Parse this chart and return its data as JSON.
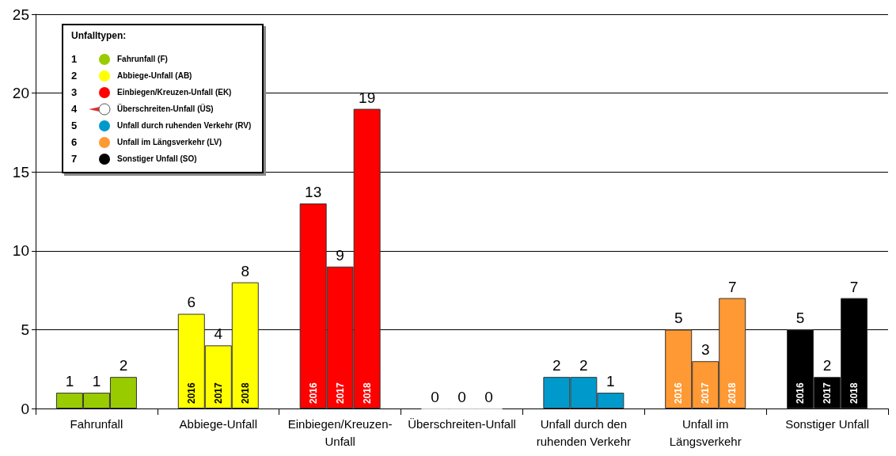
{
  "chart_data": {
    "type": "bar",
    "categories": [
      "Fahrunfall",
      "Abbiege-Unfall",
      "Einbiegen/Kreuzen-\nUnfall",
      "Überschreiten-Unfall",
      "Unfall durch den\nruhenden Verkehr",
      "Unfall im\nLängsverkehr",
      "Sonstiger Unfall"
    ],
    "series": [
      {
        "name": "2016",
        "colors": [
          "#99cc00",
          "#ffff00",
          "#ff0000",
          "#ffffff",
          "#0099cc",
          "#ff9933",
          "#000000"
        ],
        "values": [
          1,
          6,
          13,
          0,
          2,
          5,
          5
        ]
      },
      {
        "name": "2017",
        "colors": [
          "#99cc00",
          "#ffff00",
          "#ff0000",
          "#ffffff",
          "#0099cc",
          "#ff9933",
          "#000000"
        ],
        "values": [
          1,
          4,
          9,
          0,
          2,
          3,
          2
        ]
      },
      {
        "name": "2018",
        "colors": [
          "#99cc00",
          "#ffff00",
          "#ff0000",
          "#ffffff",
          "#0099cc",
          "#ff9933",
          "#000000"
        ],
        "values": [
          2,
          8,
          19,
          0,
          1,
          7,
          7
        ]
      }
    ],
    "ylim": [
      0,
      25
    ],
    "yticks": [
      0,
      5,
      10,
      15,
      20,
      25
    ],
    "grid": "y",
    "data_labels": true,
    "legend_title": "Unfalltypen:",
    "annotations": [
      "1",
      "Fahrunfall (F)",
      "2",
      "Abbiege-Unfall (AB)",
      "3",
      "Einbiegen/Kreuzen-Unfall (EK)",
      "4",
      "Überschreiten-Unfall (ÜS)",
      "5",
      "Unfall durch ruhenden Verkehr (RV)",
      "6",
      "Unfall im Längsverkehr (LV)",
      "7",
      "Sonstiger Unfall (SO)"
    ]
  }
}
